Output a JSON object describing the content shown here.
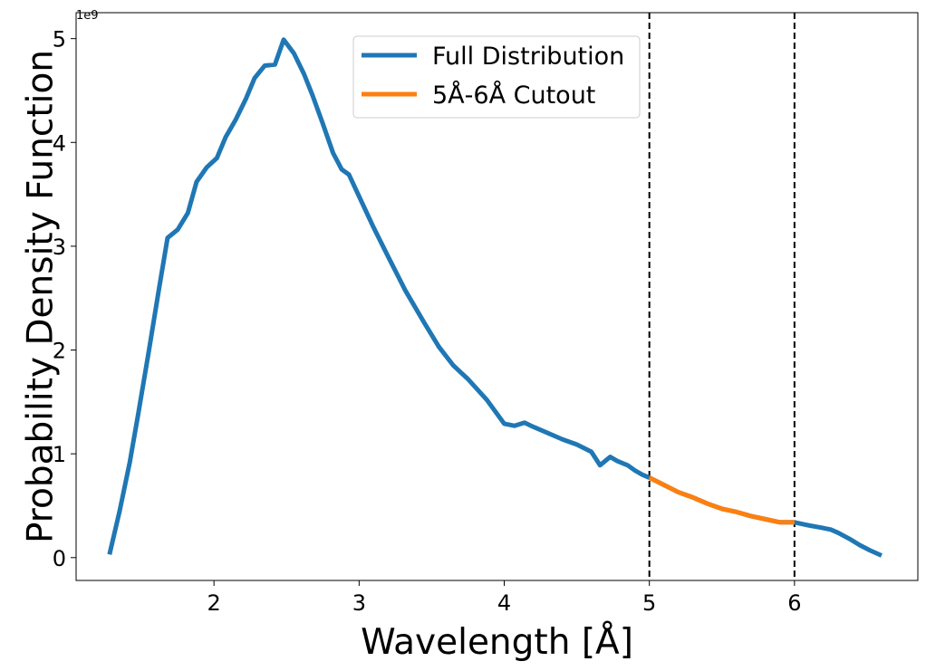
{
  "chart_data": {
    "type": "line",
    "xlabel": "Wavelength [Å]",
    "ylabel": "Probability Density Function",
    "y_offset_label": "1e9",
    "xlim": [
      1.05,
      6.85
    ],
    "ylim": [
      -0.22,
      5.25
    ],
    "xticks": [
      2,
      3,
      4,
      5,
      6
    ],
    "yticks": [
      0,
      1,
      2,
      3,
      4,
      5
    ],
    "grid": false,
    "legend_placement": "top-center",
    "vlines": [
      5.0,
      6.0
    ],
    "series": [
      {
        "name": "Full Distribution",
        "color": "#1f77b4",
        "x": [
          1.28,
          1.35,
          1.42,
          1.48,
          1.55,
          1.62,
          1.68,
          1.75,
          1.82,
          1.88,
          1.95,
          2.02,
          2.08,
          2.15,
          2.22,
          2.28,
          2.35,
          2.42,
          2.48,
          2.55,
          2.62,
          2.68,
          2.75,
          2.82,
          2.88,
          2.93,
          3.0,
          3.1,
          3.2,
          3.32,
          3.45,
          3.55,
          3.65,
          3.75,
          3.88,
          4.0,
          4.07,
          4.14,
          4.2,
          4.3,
          4.4,
          4.5,
          4.6,
          4.66,
          4.73,
          4.78,
          4.85,
          4.9,
          4.95,
          5.0,
          5.1,
          5.2,
          5.3,
          5.4,
          5.5,
          5.6,
          5.7,
          5.8,
          5.9,
          6.0,
          6.1,
          6.18,
          6.25,
          6.3,
          6.38,
          6.45,
          6.52,
          6.6
        ],
        "y": [
          0.03,
          0.45,
          0.92,
          1.4,
          1.98,
          2.58,
          3.08,
          3.16,
          3.32,
          3.62,
          3.76,
          3.85,
          4.05,
          4.22,
          4.42,
          4.62,
          4.74,
          4.75,
          4.99,
          4.86,
          4.66,
          4.45,
          4.18,
          3.9,
          3.74,
          3.69,
          3.48,
          3.18,
          2.9,
          2.57,
          2.26,
          2.03,
          1.85,
          1.72,
          1.52,
          1.29,
          1.27,
          1.3,
          1.26,
          1.2,
          1.14,
          1.09,
          1.02,
          0.89,
          0.97,
          0.93,
          0.89,
          0.84,
          0.8,
          0.77,
          0.7,
          0.63,
          0.58,
          0.52,
          0.47,
          0.44,
          0.4,
          0.37,
          0.34,
          0.34,
          0.31,
          0.29,
          0.27,
          0.24,
          0.18,
          0.12,
          0.07,
          0.02
        ]
      },
      {
        "name": "5Å-6Å Cutout",
        "color": "#ff7f0e",
        "x": [
          5.0,
          5.1,
          5.2,
          5.3,
          5.4,
          5.5,
          5.6,
          5.7,
          5.8,
          5.9,
          6.0
        ],
        "y": [
          0.77,
          0.7,
          0.63,
          0.58,
          0.52,
          0.47,
          0.44,
          0.4,
          0.37,
          0.34,
          0.34
        ]
      }
    ]
  }
}
